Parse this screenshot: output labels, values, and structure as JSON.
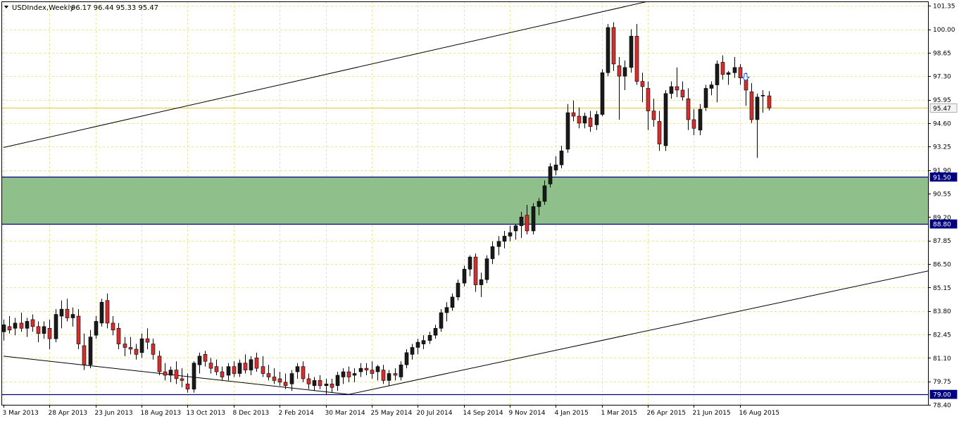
{
  "header": {
    "symbol_label": "USDIndex,Weekly",
    "ohlc_label": "96.17 96.44 95.33 95.47"
  },
  "colors": {
    "background": "#ffffff",
    "grid": "#e6e6a0",
    "bull": "#1a1a1a",
    "bear": "#d32f2f",
    "zone_fill": "#8fbf8a",
    "level_line": "#000080",
    "current_price_line": "#e8c83a",
    "arrow": "#1e4fd8"
  },
  "chart_data": {
    "type": "candlestick",
    "symbol": "USDIndex",
    "timeframe": "Weekly",
    "last_ohlc": {
      "open": 96.17,
      "high": 96.44,
      "low": 95.33,
      "close": 95.47
    },
    "ylim": [
      78.4,
      101.6
    ],
    "xlim": [
      0,
      135
    ],
    "y_ticks": [
      "101.35",
      "100.00",
      "98.65",
      "97.30",
      "95.95",
      "94.60",
      "93.25",
      "91.90",
      "90.55",
      "89.20",
      "87.85",
      "86.50",
      "85.15",
      "83.80",
      "82.45",
      "81.10",
      "79.75",
      "78.40"
    ],
    "x_ticks": [
      {
        "i": 0,
        "label": "3 Mar 2013"
      },
      {
        "i": 8,
        "label": "28 Apr 2013"
      },
      {
        "i": 16,
        "label": "23 Jun 2013"
      },
      {
        "i": 24,
        "label": "18 Aug 2013"
      },
      {
        "i": 32,
        "label": "13 Oct 2013"
      },
      {
        "i": 40,
        "label": "8 Dec 2013"
      },
      {
        "i": 48,
        "label": "2 Feb 2014"
      },
      {
        "i": 56,
        "label": "30 Mar 2014"
      },
      {
        "i": 64,
        "label": "25 May 2014"
      },
      {
        "i": 72,
        "label": "20 Jul 2014"
      },
      {
        "i": 80,
        "label": "14 Sep 2014"
      },
      {
        "i": 88,
        "label": "9 Nov 2014"
      },
      {
        "i": 96,
        "label": "4 Jan 2015"
      },
      {
        "i": 104,
        "label": "1 Mar 2015"
      },
      {
        "i": 112,
        "label": "26 Apr 2015"
      },
      {
        "i": 120,
        "label": "21 Jun 2015"
      },
      {
        "i": 128,
        "label": "16 Aug 2015"
      }
    ],
    "price_labels": [
      {
        "value": 95.47,
        "label": "95.47",
        "kind": "current"
      },
      {
        "value": 91.5,
        "label": "91.50",
        "kind": "level"
      },
      {
        "value": 88.8,
        "label": "88.80",
        "kind": "level"
      },
      {
        "value": 79.0,
        "label": "79.00",
        "kind": "level"
      }
    ],
    "support_zone": {
      "low": 88.8,
      "high": 91.5
    },
    "trendlines": [
      {
        "x1": 0,
        "y1": 93.2,
        "x2": 112,
        "y2": 101.6
      },
      {
        "x1": 0,
        "y1": 81.2,
        "x2": 60,
        "y2": 79.0
      },
      {
        "x1": 60,
        "y1": 79.0,
        "x2": 165,
        "y2": 86.4
      }
    ],
    "marker": {
      "i": 129,
      "price": 97.2,
      "type": "down-arrow"
    },
    "candles": [
      [
        82.6,
        83.3,
        82.1,
        83.0
      ],
      [
        82.9,
        83.5,
        82.5,
        82.7
      ],
      [
        82.8,
        83.4,
        82.4,
        83.1
      ],
      [
        83.1,
        83.7,
        82.6,
        82.8
      ],
      [
        82.8,
        83.4,
        82.3,
        83.2
      ],
      [
        83.3,
        83.6,
        82.6,
        82.9
      ],
      [
        82.9,
        83.2,
        82.0,
        82.5
      ],
      [
        82.5,
        83.2,
        82.2,
        82.9
      ],
      [
        82.8,
        83.3,
        81.6,
        82.2
      ],
      [
        82.2,
        83.9,
        82.0,
        83.6
      ],
      [
        83.5,
        84.4,
        82.8,
        83.9
      ],
      [
        83.9,
        84.5,
        83.2,
        83.4
      ],
      [
        83.4,
        84.0,
        82.9,
        83.6
      ],
      [
        83.5,
        83.9,
        81.6,
        81.9
      ],
      [
        81.8,
        82.5,
        80.4,
        80.7
      ],
      [
        80.7,
        82.7,
        80.5,
        82.3
      ],
      [
        82.4,
        83.5,
        82.2,
        83.2
      ],
      [
        83.1,
        84.5,
        82.9,
        84.3
      ],
      [
        84.4,
        84.8,
        82.8,
        83.1
      ],
      [
        83.1,
        83.5,
        82.4,
        82.7
      ],
      [
        82.8,
        83.1,
        81.6,
        81.9
      ],
      [
        81.9,
        82.3,
        81.2,
        81.7
      ],
      [
        81.7,
        82.3,
        81.3,
        81.6
      ],
      [
        81.6,
        81.9,
        81.0,
        81.3
      ],
      [
        81.4,
        82.5,
        81.1,
        82.2
      ],
      [
        82.2,
        82.8,
        81.6,
        82.0
      ],
      [
        81.9,
        82.2,
        81.0,
        81.3
      ],
      [
        81.2,
        81.5,
        80.1,
        80.3
      ],
      [
        80.3,
        80.8,
        79.8,
        80.1
      ],
      [
        80.1,
        80.6,
        79.7,
        80.4
      ],
      [
        80.4,
        80.9,
        79.6,
        79.9
      ],
      [
        79.9,
        80.5,
        79.4,
        79.8
      ],
      [
        79.6,
        80.2,
        79.1,
        79.3
      ],
      [
        79.3,
        80.9,
        79.1,
        80.8
      ],
      [
        80.7,
        81.4,
        80.2,
        81.2
      ],
      [
        81.3,
        81.5,
        80.6,
        80.9
      ],
      [
        80.8,
        81.1,
        80.2,
        80.5
      ],
      [
        80.6,
        81.0,
        80.1,
        80.3
      ],
      [
        80.3,
        80.6,
        79.8,
        80.0
      ],
      [
        80.1,
        80.8,
        79.8,
        80.6
      ],
      [
        80.6,
        80.9,
        80.0,
        80.2
      ],
      [
        80.2,
        81.0,
        80.0,
        80.8
      ],
      [
        80.8,
        81.3,
        80.2,
        80.4
      ],
      [
        80.4,
        81.2,
        80.1,
        81.0
      ],
      [
        81.1,
        81.4,
        80.3,
        80.5
      ],
      [
        80.6,
        81.2,
        80.0,
        80.2
      ],
      [
        80.2,
        80.7,
        79.8,
        80.0
      ],
      [
        80.0,
        80.5,
        79.6,
        79.8
      ],
      [
        79.9,
        80.3,
        79.5,
        79.7
      ],
      [
        79.7,
        80.2,
        79.3,
        79.5
      ],
      [
        79.6,
        80.4,
        79.2,
        80.2
      ],
      [
        80.3,
        80.8,
        79.9,
        80.6
      ],
      [
        80.6,
        80.9,
        79.7,
        79.9
      ],
      [
        79.9,
        80.2,
        79.3,
        79.6
      ],
      [
        79.5,
        80.0,
        79.2,
        79.8
      ],
      [
        79.8,
        80.1,
        79.3,
        79.5
      ],
      [
        79.5,
        79.9,
        79.0,
        79.6
      ],
      [
        79.6,
        79.9,
        79.1,
        79.4
      ],
      [
        79.5,
        80.3,
        79.2,
        80.1
      ],
      [
        80.0,
        80.5,
        79.6,
        80.3
      ],
      [
        80.3,
        80.6,
        79.7,
        80.0
      ],
      [
        80.1,
        80.5,
        79.7,
        80.2
      ],
      [
        80.3,
        80.8,
        80.0,
        80.5
      ],
      [
        80.5,
        80.8,
        80.1,
        80.4
      ],
      [
        80.4,
        80.9,
        79.9,
        80.2
      ],
      [
        80.3,
        80.7,
        79.8,
        80.6
      ],
      [
        80.4,
        80.7,
        79.6,
        79.8
      ],
      [
        79.8,
        80.4,
        79.5,
        80.2
      ],
      [
        80.2,
        80.5,
        79.8,
        80.1
      ],
      [
        80.0,
        80.9,
        79.8,
        80.7
      ],
      [
        80.7,
        81.6,
        80.5,
        81.4
      ],
      [
        81.3,
        81.9,
        81.0,
        81.7
      ],
      [
        81.7,
        82.2,
        81.3,
        82.0
      ],
      [
        81.9,
        82.4,
        81.6,
        82.1
      ],
      [
        82.1,
        82.6,
        81.9,
        82.4
      ],
      [
        82.4,
        83.0,
        82.2,
        82.8
      ],
      [
        82.8,
        83.9,
        82.6,
        83.7
      ],
      [
        83.7,
        84.3,
        83.2,
        84.0
      ],
      [
        84.0,
        84.8,
        83.8,
        84.6
      ],
      [
        84.6,
        85.6,
        84.4,
        85.4
      ],
      [
        85.4,
        86.4,
        85.2,
        86.2
      ],
      [
        86.2,
        87.0,
        85.8,
        86.9
      ],
      [
        86.9,
        87.1,
        84.9,
        85.3
      ],
      [
        85.3,
        86.0,
        84.6,
        85.6
      ],
      [
        85.6,
        87.0,
        85.4,
        86.8
      ],
      [
        86.8,
        87.8,
        86.5,
        87.5
      ],
      [
        87.5,
        88.1,
        87.0,
        87.8
      ],
      [
        87.8,
        88.4,
        87.4,
        88.1
      ],
      [
        88.1,
        88.7,
        87.8,
        88.3
      ],
      [
        88.4,
        88.8,
        87.9,
        88.7
      ],
      [
        88.7,
        89.5,
        88.0,
        89.2
      ],
      [
        89.3,
        89.9,
        88.2,
        88.4
      ],
      [
        88.4,
        90.0,
        88.2,
        89.8
      ],
      [
        89.8,
        90.3,
        89.3,
        90.1
      ],
      [
        90.1,
        91.3,
        89.9,
        91.0
      ],
      [
        91.1,
        92.3,
        90.9,
        92.1
      ],
      [
        91.9,
        92.7,
        91.6,
        92.2
      ],
      [
        92.2,
        93.3,
        92.0,
        93.0
      ],
      [
        93.1,
        95.7,
        92.9,
        95.2
      ],
      [
        95.2,
        95.9,
        94.7,
        95.0
      ],
      [
        95.0,
        95.5,
        94.3,
        94.6
      ],
      [
        94.6,
        95.2,
        94.3,
        95.0
      ],
      [
        94.9,
        95.3,
        94.1,
        94.4
      ],
      [
        94.5,
        95.3,
        94.2,
        95.1
      ],
      [
        95.1,
        97.7,
        95.0,
        97.5
      ],
      [
        97.5,
        100.3,
        97.3,
        100.1
      ],
      [
        100.1,
        100.4,
        97.6,
        98.0
      ],
      [
        97.9,
        98.4,
        94.8,
        97.3
      ],
      [
        97.3,
        98.2,
        96.5,
        97.8
      ],
      [
        97.8,
        100.0,
        97.5,
        99.6
      ],
      [
        99.6,
        100.3,
        96.8,
        97.0
      ],
      [
        97.0,
        97.5,
        95.8,
        96.7
      ],
      [
        96.6,
        97.0,
        94.2,
        95.3
      ],
      [
        95.3,
        96.0,
        94.4,
        94.8
      ],
      [
        94.7,
        95.3,
        93.0,
        93.4
      ],
      [
        93.3,
        96.5,
        93.0,
        96.3
      ],
      [
        96.3,
        97.0,
        96.0,
        96.7
      ],
      [
        96.7,
        97.8,
        96.1,
        96.5
      ],
      [
        96.5,
        97.0,
        95.9,
        96.1
      ],
      [
        96.0,
        96.6,
        94.2,
        94.8
      ],
      [
        94.8,
        95.4,
        93.9,
        94.3
      ],
      [
        94.2,
        95.7,
        93.9,
        95.4
      ],
      [
        95.5,
        96.8,
        95.3,
        96.6
      ],
      [
        96.6,
        97.0,
        96.2,
        96.8
      ],
      [
        96.8,
        98.2,
        95.8,
        98.0
      ],
      [
        98.1,
        98.5,
        97.1,
        97.4
      ],
      [
        97.4,
        97.6,
        96.8,
        97.5
      ],
      [
        97.5,
        98.4,
        97.2,
        97.8
      ],
      [
        97.8,
        98.0,
        96.8,
        97.2
      ],
      [
        97.1,
        97.5,
        95.6,
        96.5
      ],
      [
        96.4,
        96.9,
        94.6,
        94.8
      ],
      [
        94.8,
        96.3,
        92.6,
        96.1
      ],
      [
        96.2,
        96.5,
        95.2,
        96.2
      ],
      [
        96.17,
        96.44,
        95.33,
        95.47
      ]
    ]
  }
}
